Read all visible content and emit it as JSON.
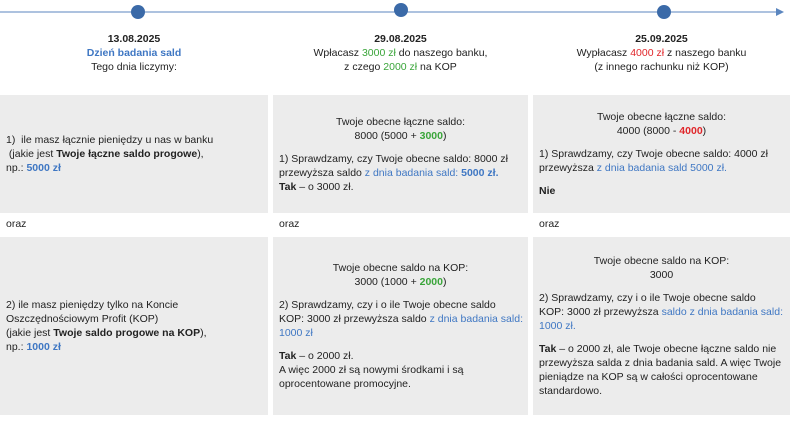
{
  "header": [
    [
      [
        {
          "text": "13.08.2025",
          "bold": true
        }
      ],
      [
        {
          "text": "Dzień badania sald",
          "bold": true,
          "color": "#3f77c3"
        }
      ],
      [
        {
          "text": "Tego dnia liczymy:"
        }
      ]
    ],
    [
      [
        {
          "text": "29.08.2025",
          "bold": true
        }
      ],
      [
        {
          "text": "Wpłacasz "
        },
        {
          "text": "3000 zł",
          "color": "#3aa53a"
        },
        {
          "text": " do naszego banku,"
        }
      ],
      [
        {
          "text": "z czego "
        },
        {
          "text": "2000 zł",
          "color": "#3aa53a"
        },
        {
          "text": " na KOP"
        }
      ]
    ],
    [
      [
        {
          "text": "25.09.2025",
          "bold": true
        }
      ],
      [
        {
          "text": "Wypłacasz "
        },
        {
          "text": "4000 zł",
          "color": "#e0262a"
        },
        {
          "text": " z naszego banku"
        }
      ],
      [
        {
          "text": "(z innego rachunku niż KOP)"
        }
      ]
    ]
  ],
  "rows": [
    {
      "cells": [
        [
          [
            [
              {
                "text": "1)  ile masz łącznie pieniędzy u nas w banku"
              }
            ],
            [
              {
                "text": " (jakie jest "
              },
              {
                "text": "Twoje łączne saldo progowe",
                "bold": true
              },
              {
                "text": "),"
              }
            ],
            [
              {
                "text": "np.: "
              },
              {
                "text": "5000 zł",
                "bold": true,
                "color": "#3f77c3"
              }
            ]
          ]
        ],
        [
          [
            [
              {
                "text": "Twoje obecne łączne saldo:"
              }
            ],
            [
              {
                "text": "8000 (5000 + "
              },
              {
                "text": "3000",
                "bold": true,
                "color": "#3aa53a"
              },
              {
                "text": ")"
              }
            ]
          ],
          [
            [
              {
                "text": "1) Sprawdzamy, czy Twoje obecne saldo: 8000 zł"
              }
            ],
            [
              {
                "text": "przewyższa saldo "
              },
              {
                "text": "z dnia badania sald: ",
                "color": "#3f77c3"
              },
              {
                "text": "5000 zł.",
                "bold": true,
                "color": "#3f77c3"
              }
            ],
            [
              {
                "text": "Tak",
                "bold": true
              },
              {
                "text": " – o 3000 zł."
              }
            ]
          ]
        ],
        [
          [
            [
              {
                "text": "Twoje obecne łączne saldo:"
              }
            ],
            [
              {
                "text": "4000 (8000 - "
              },
              {
                "text": "4000",
                "bold": true,
                "color": "#e0262a"
              },
              {
                "text": ")"
              }
            ]
          ],
          [
            [
              {
                "text": "1) Sprawdzamy, czy Twoje obecne saldo: 4000 zł"
              }
            ],
            [
              {
                "text": "przewyższa "
              },
              {
                "text": "z dnia badania sald 5000 zł.",
                "color": "#3f77c3"
              }
            ]
          ],
          [
            [
              {
                "text": "Nie",
                "bold": true
              }
            ]
          ]
        ]
      ]
    },
    {
      "cells": [
        [
          [
            [
              {
                "text": "2) ile masz pieniędzy tylko na Koncie"
              }
            ],
            [
              {
                "text": "Oszczędnościowym Profit (KOP)"
              }
            ],
            [
              {
                "text": "(jakie jest "
              },
              {
                "text": "Twoje saldo progowe na KOP",
                "bold": true
              },
              {
                "text": "),"
              }
            ],
            [
              {
                "text": "np.: "
              },
              {
                "text": "1000 zł",
                "bold": true,
                "color": "#3f77c3"
              }
            ]
          ]
        ],
        [
          [
            [
              {
                "text": "Twoje obecne saldo na KOP:"
              }
            ],
            [
              {
                "text": "3000 (1000 + "
              },
              {
                "text": "2000",
                "bold": true,
                "color": "#3aa53a"
              },
              {
                "text": ")"
              }
            ]
          ],
          [
            [
              {
                "text": "2) Sprawdzamy, czy i o ile Twoje obecne saldo"
              }
            ],
            [
              {
                "text": "KOP: 3000 zł przewyższa saldo "
              },
              {
                "text": "z dnia badania sald:",
                "color": "#3f77c3"
              }
            ],
            [
              {
                "text": "1000 zł",
                "color": "#3f77c3"
              }
            ]
          ],
          [
            [
              {
                "text": "Tak",
                "bold": true
              },
              {
                "text": " – o 2000 zł."
              }
            ],
            [
              {
                "text": "A więc 2000 zł są nowymi środkami i są"
              }
            ],
            [
              {
                "text": "oprocentowane promocyjne."
              }
            ]
          ]
        ],
        [
          [
            [
              {
                "text": "Twoje obecne saldo na KOP:"
              }
            ],
            [
              {
                "text": "3000"
              }
            ]
          ],
          [
            [
              {
                "text": "2) Sprawdzamy, czy i o ile Twoje obecne saldo"
              }
            ],
            [
              {
                "text": "KOP: 3000 zł przewyższa "
              },
              {
                "text": "saldo z dnia badania sald:",
                "color": "#3f77c3"
              }
            ],
            [
              {
                "text": "1000 zł.",
                "color": "#3f77c3"
              }
            ]
          ],
          [
            [
              {
                "text": "Tak",
                "bold": true
              },
              {
                "text": " – o 2000 zł, ale Twoje obecne łączne saldo nie"
              }
            ],
            [
              {
                "text": "przewyższa salda z dnia badania sald. A więc Twoje"
              }
            ],
            [
              {
                "text": "pieniądze na KOP są w całości oprocentowane"
              }
            ],
            [
              {
                "text": "standardowo."
              }
            ]
          ]
        ]
      ]
    }
  ],
  "separators": [
    "oraz",
    "oraz",
    "oraz"
  ]
}
